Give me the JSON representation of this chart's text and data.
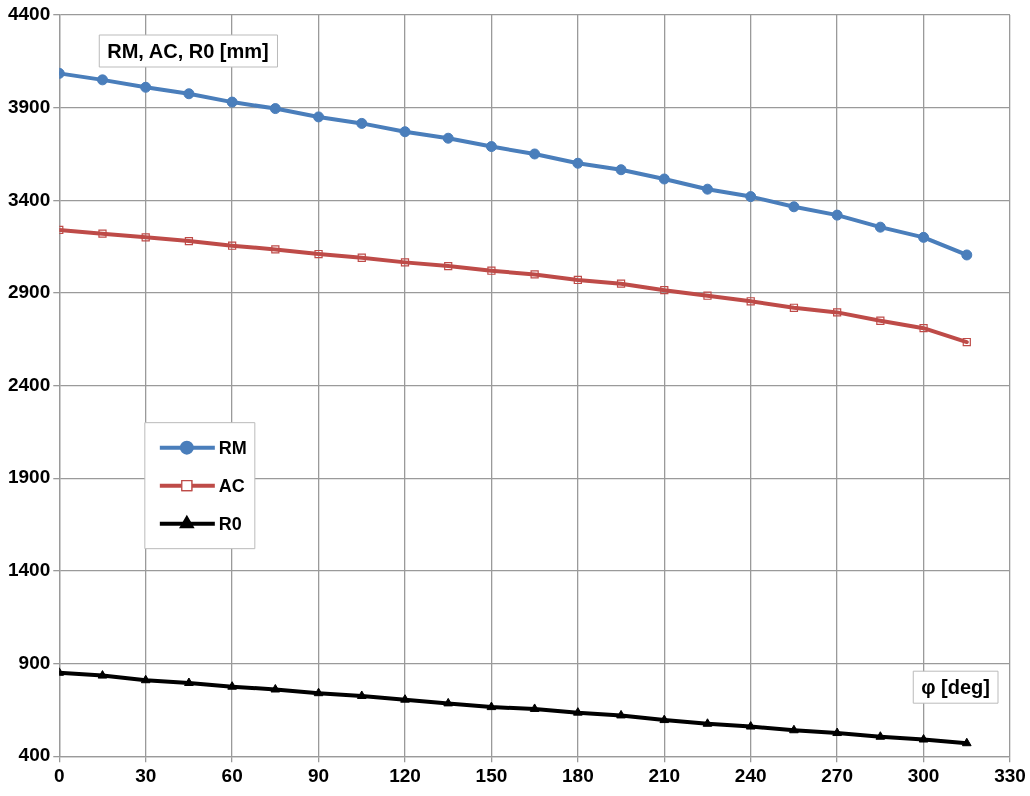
{
  "chart_data": {
    "type": "line",
    "xlabel": "φ [deg]",
    "ylabel": "RM, AC, R0 [mm]",
    "x": [
      0,
      15,
      30,
      45,
      60,
      75,
      90,
      105,
      120,
      135,
      150,
      165,
      180,
      195,
      210,
      225,
      240,
      255,
      270,
      285,
      300,
      315
    ],
    "series": [
      {
        "name": "RM",
        "color": "#4a7ebb",
        "marker": "circle",
        "values": [
          4085,
          4050,
          4010,
          3975,
          3930,
          3895,
          3850,
          3815,
          3770,
          3735,
          3690,
          3650,
          3600,
          3565,
          3515,
          3460,
          3420,
          3365,
          3320,
          3255,
          3200,
          3105
        ]
      },
      {
        "name": "AC",
        "color": "#be4b48",
        "marker": "square",
        "values": [
          3240,
          3220,
          3200,
          3180,
          3155,
          3135,
          3110,
          3090,
          3065,
          3045,
          3020,
          3000,
          2970,
          2950,
          2915,
          2885,
          2855,
          2820,
          2795,
          2750,
          2710,
          2635
        ]
      },
      {
        "name": "R0",
        "color": "#000000",
        "marker": "triangle",
        "values": [
          850,
          835,
          810,
          795,
          775,
          760,
          740,
          725,
          705,
          685,
          665,
          655,
          635,
          620,
          595,
          575,
          560,
          540,
          525,
          505,
          490,
          470
        ]
      }
    ],
    "xlim": [
      0,
      330
    ],
    "xticks": [
      0,
      30,
      60,
      90,
      120,
      150,
      180,
      210,
      240,
      270,
      300,
      330
    ],
    "ylim": [
      400,
      4400
    ],
    "yticks": [
      400,
      900,
      1400,
      1900,
      2400,
      2900,
      3400,
      3900,
      4400
    ],
    "grid": true,
    "legend": "left",
    "line_style": "solid"
  }
}
